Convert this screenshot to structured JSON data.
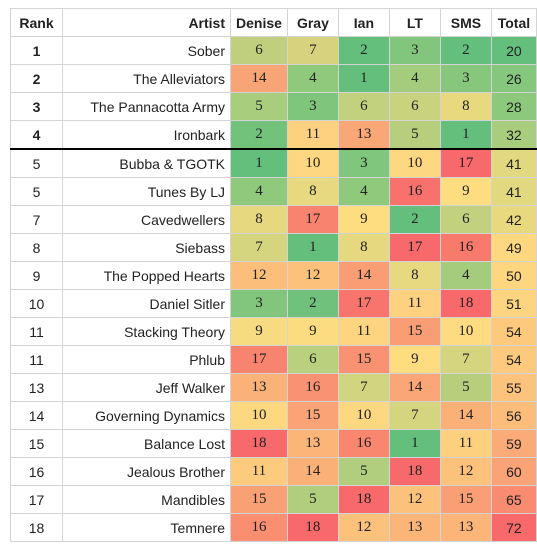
{
  "header": {
    "rank": "Rank",
    "artist": "Artist",
    "judges": [
      "Denise",
      "Gray",
      "Ian",
      "LT",
      "SMS"
    ],
    "total": "Total"
  },
  "rows": [
    {
      "rank": "1",
      "artist": "Sober",
      "scores": [
        "6",
        "7",
        "2",
        "3",
        "2"
      ],
      "total": "20",
      "colors": [
        "#c0cf7d",
        "#d7d27d",
        "#63bf7b",
        "#81c67c",
        "#63bf7b"
      ],
      "total_color": "#63bf7b"
    },
    {
      "rank": "2",
      "artist": "The Alleviators",
      "scores": [
        "14",
        "4",
        "1",
        "4",
        "3"
      ],
      "total": "26",
      "colors": [
        "#f7a476",
        "#8fc97c",
        "#63bf7b",
        "#a4cc7d",
        "#86c77c"
      ],
      "total_color": "#85c77c"
    },
    {
      "rank": "3",
      "artist": "The Pannacotta Army",
      "scores": [
        "5",
        "3",
        "6",
        "6",
        "8"
      ],
      "total": "28",
      "colors": [
        "#a7cd7d",
        "#80c57c",
        "#c1d17e",
        "#c9d37e",
        "#e8d97f"
      ],
      "total_color": "#8cc97c"
    },
    {
      "rank": "4",
      "artist": "Ironbark",
      "scores": [
        "2",
        "11",
        "13",
        "5",
        "1"
      ],
      "total": "32",
      "colors": [
        "#72c27b",
        "#fdd17f",
        "#f9a777",
        "#b7cf7d",
        "#63bf7b"
      ],
      "total_color": "#a7cd7d"
    },
    {
      "rank": "5",
      "artist": "Bubba & TGOTK",
      "scores": [
        "1",
        "10",
        "3",
        "10",
        "17"
      ],
      "total": "41",
      "colors": [
        "#63bf7b",
        "#fed880",
        "#80c67c",
        "#fed880",
        "#f8696b"
      ],
      "total_color": "#e2d880"
    },
    {
      "rank": "5",
      "artist": "Tunes By LJ",
      "scores": [
        "4",
        "8",
        "4",
        "16",
        "9"
      ],
      "total": "41",
      "colors": [
        "#8fc97c",
        "#e7d97f",
        "#8fc97c",
        "#f8716c",
        "#fedd81"
      ],
      "total_color": "#e2d880"
    },
    {
      "rank": "7",
      "artist": "Cavedwellers",
      "scores": [
        "8",
        "17",
        "9",
        "2",
        "6"
      ],
      "total": "42",
      "colors": [
        "#e5d87f",
        "#f8836e",
        "#fedd81",
        "#63bf7b",
        "#c1d17e"
      ],
      "total_color": "#e8d97f"
    },
    {
      "rank": "8",
      "artist": "Siebass",
      "scores": [
        "7",
        "1",
        "8",
        "17",
        "16"
      ],
      "total": "49",
      "colors": [
        "#d5d47f",
        "#63bf7b",
        "#e5d87f",
        "#f8696b",
        "#f87a6d"
      ],
      "total_color": "#fed880"
    },
    {
      "rank": "9",
      "artist": "The Popped Hearts",
      "scores": [
        "12",
        "12",
        "14",
        "8",
        "4"
      ],
      "total": "50",
      "colors": [
        "#fcbf7b",
        "#fcc27c",
        "#f99d74",
        "#e7d97f",
        "#a4cc7d"
      ],
      "total_color": "#fed680"
    },
    {
      "rank": "10",
      "artist": "Daniel Sitler",
      "scores": [
        "3",
        "2",
        "17",
        "11",
        "18"
      ],
      "total": "51",
      "colors": [
        "#81c67c",
        "#70c17b",
        "#f8756d",
        "#fdd17f",
        "#f8696b"
      ],
      "total_color": "#fdd47f"
    },
    {
      "rank": "11",
      "artist": "Stacking Theory",
      "scores": [
        "9",
        "9",
        "11",
        "15",
        "10"
      ],
      "total": "54",
      "colors": [
        "#f6db80",
        "#fcdc81",
        "#fdd47f",
        "#f99d74",
        "#feda80"
      ],
      "total_color": "#fdc97d"
    },
    {
      "rank": "11",
      "artist": "Phlub",
      "scores": [
        "17",
        "6",
        "15",
        "9",
        "7"
      ],
      "total": "54",
      "colors": [
        "#f8836e",
        "#b9d07e",
        "#f99272",
        "#fedd81",
        "#d5d47f"
      ],
      "total_color": "#fdc97d"
    },
    {
      "rank": "13",
      "artist": "Jeff Walker",
      "scores": [
        "13",
        "16",
        "7",
        "14",
        "5"
      ],
      "total": "55",
      "colors": [
        "#fbb279",
        "#f99272",
        "#d3d47f",
        "#faa676",
        "#b7cf7d"
      ],
      "total_color": "#fcc37c"
    },
    {
      "rank": "14",
      "artist": "Governing Dynamics",
      "scores": [
        "10",
        "15",
        "10",
        "7",
        "14"
      ],
      "total": "56",
      "colors": [
        "#fed880",
        "#f9a376",
        "#fed880",
        "#d5d47f",
        "#fab178"
      ],
      "total_color": "#fcbd7b"
    },
    {
      "rank": "15",
      "artist": "Balance Lost",
      "scores": [
        "18",
        "13",
        "16",
        "1",
        "11"
      ],
      "total": "59",
      "colors": [
        "#f8696b",
        "#fbb579",
        "#f9866f",
        "#63bf7b",
        "#fdd07f"
      ],
      "total_color": "#faab77"
    },
    {
      "rank": "16",
      "artist": "Jealous Brother",
      "scores": [
        "11",
        "14",
        "5",
        "18",
        "12"
      ],
      "total": "60",
      "colors": [
        "#fdcb7d",
        "#fab178",
        "#b0ce7d",
        "#f8696b",
        "#fcc27c"
      ],
      "total_color": "#f9a376"
    },
    {
      "rank": "17",
      "artist": "Mandibles",
      "scores": [
        "15",
        "5",
        "18",
        "12",
        "15"
      ],
      "total": "65",
      "colors": [
        "#f9a075",
        "#b0ce7d",
        "#f8696b",
        "#fcc27c",
        "#fa9e75"
      ],
      "total_color": "#f98b71"
    },
    {
      "rank": "18",
      "artist": "Temnere",
      "scores": [
        "16",
        "18",
        "12",
        "13",
        "13"
      ],
      "total": "72",
      "colors": [
        "#f98e71",
        "#f8696b",
        "#fcc27c",
        "#fbb579",
        "#fbb579"
      ],
      "total_color": "#f8696b"
    }
  ]
}
